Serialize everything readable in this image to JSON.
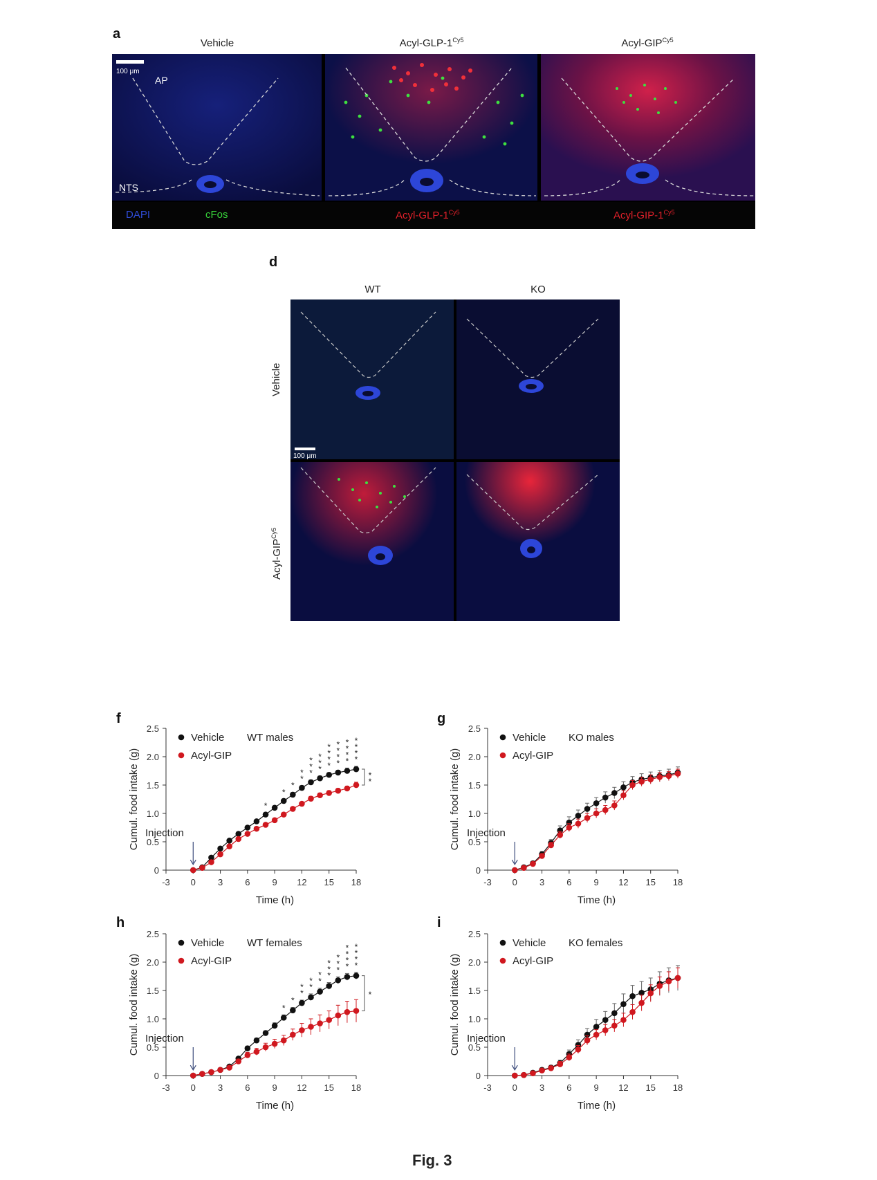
{
  "panel_a": {
    "label": "a",
    "titles": [
      {
        "main": "Vehicle",
        "sup": ""
      },
      {
        "main": "Acyl-GLP-1",
        "sup": "Cy5"
      },
      {
        "main": "Acyl-GIP",
        "sup": "Cy5"
      }
    ],
    "scale_bar": "100 μm",
    "region_ap": "AP",
    "region_nts": "NTS",
    "legend": {
      "dapi": "DAPI",
      "cfos": "cFos",
      "glp1": {
        "main": "Acyl-GLP-1",
        "sup": "Cy5"
      },
      "gip": {
        "main": "Acyl-GIP-1",
        "sup": "Cy5"
      }
    },
    "colors": {
      "dapi": "#2f4bd6",
      "cfos": "#37d33a",
      "cy5": "#e0202a"
    }
  },
  "panel_d": {
    "label": "d",
    "columns": [
      "WT",
      "KO"
    ],
    "rows": [
      {
        "main": "Vehicle",
        "sup": ""
      },
      {
        "main": "Acyl-GIP",
        "sup": "Cy5"
      }
    ],
    "scale_bar": "100 μm"
  },
  "chart_data": [
    {
      "panel": "f",
      "type": "line",
      "annotation": "WT males",
      "xlabel": "Time (h)",
      "ylabel": "Cumul. food intake (g)",
      "xlim": [
        -3,
        18
      ],
      "ylim": [
        0,
        2.5
      ],
      "xticks": [
        -3,
        0,
        3,
        6,
        9,
        12,
        15,
        18
      ],
      "yticks": [
        "0",
        "0.5",
        "1.0",
        "1.5",
        "2.0",
        "2.5"
      ],
      "injection_label": "Injection",
      "x": [
        0,
        1,
        2,
        3,
        4,
        5,
        6,
        7,
        8,
        9,
        10,
        11,
        12,
        13,
        14,
        15,
        16,
        17,
        18
      ],
      "series": [
        {
          "name": "Vehicle",
          "color": "#111111",
          "values": [
            0,
            0.05,
            0.22,
            0.38,
            0.52,
            0.64,
            0.75,
            0.86,
            0.98,
            1.1,
            1.22,
            1.33,
            1.45,
            1.55,
            1.62,
            1.68,
            1.72,
            1.75,
            1.78
          ],
          "errors": [
            0,
            0.02,
            0.03,
            0.03,
            0.03,
            0.03,
            0.03,
            0.03,
            0.03,
            0.03,
            0.03,
            0.04,
            0.04,
            0.04,
            0.04,
            0.04,
            0.04,
            0.05,
            0.05
          ]
        },
        {
          "name": "Acyl-GIP",
          "color": "#d0181f",
          "values": [
            0,
            0.04,
            0.14,
            0.28,
            0.42,
            0.55,
            0.64,
            0.73,
            0.8,
            0.88,
            0.98,
            1.08,
            1.17,
            1.26,
            1.32,
            1.36,
            1.4,
            1.44,
            1.5
          ],
          "errors": [
            0,
            0.02,
            0.03,
            0.03,
            0.03,
            0.03,
            0.03,
            0.03,
            0.03,
            0.03,
            0.03,
            0.03,
            0.03,
            0.04,
            0.04,
            0.04,
            0.04,
            0.04,
            0.05
          ]
        }
      ],
      "sig_marks": [
        {
          "x": 8,
          "stars": "*"
        },
        {
          "x": 10,
          "stars": "*"
        },
        {
          "x": 11,
          "stars": "*"
        },
        {
          "x": 12,
          "stars": "**"
        },
        {
          "x": 13,
          "stars": "***"
        },
        {
          "x": 14,
          "stars": "***"
        },
        {
          "x": 15,
          "stars": "****"
        },
        {
          "x": 16,
          "stars": "****"
        },
        {
          "x": 17,
          "stars": "****"
        },
        {
          "x": 18,
          "stars": "****"
        }
      ],
      "bracket": "**"
    },
    {
      "panel": "g",
      "type": "line",
      "annotation": "KO males",
      "xlabel": "Time (h)",
      "ylabel": "Cumul. food intake (g)",
      "xlim": [
        -3,
        18
      ],
      "ylim": [
        0,
        2.5
      ],
      "xticks": [
        -3,
        0,
        3,
        6,
        9,
        12,
        15,
        18
      ],
      "yticks": [
        "0",
        "0.5",
        "1.0",
        "1.5",
        "2.0",
        "2.5"
      ],
      "injection_label": "Injection",
      "x": [
        0,
        1,
        2,
        3,
        4,
        5,
        6,
        7,
        8,
        9,
        10,
        11,
        12,
        13,
        14,
        15,
        16,
        17,
        18
      ],
      "series": [
        {
          "name": "Vehicle",
          "color": "#111111",
          "values": [
            0,
            0.05,
            0.12,
            0.28,
            0.48,
            0.7,
            0.84,
            0.96,
            1.08,
            1.18,
            1.28,
            1.36,
            1.46,
            1.55,
            1.6,
            1.63,
            1.66,
            1.68,
            1.72
          ],
          "errors": [
            0,
            0.02,
            0.03,
            0.05,
            0.06,
            0.08,
            0.1,
            0.1,
            0.1,
            0.1,
            0.1,
            0.1,
            0.1,
            0.1,
            0.1,
            0.1,
            0.1,
            0.1,
            0.1
          ]
        },
        {
          "name": "Acyl-GIP",
          "color": "#d0181f",
          "values": [
            0,
            0.04,
            0.11,
            0.25,
            0.44,
            0.62,
            0.75,
            0.82,
            0.92,
            1.0,
            1.06,
            1.14,
            1.32,
            1.5,
            1.56,
            1.6,
            1.64,
            1.66,
            1.7
          ],
          "errors": [
            0,
            0.02,
            0.03,
            0.04,
            0.05,
            0.06,
            0.07,
            0.08,
            0.08,
            0.08,
            0.08,
            0.08,
            0.08,
            0.08,
            0.08,
            0.08,
            0.08,
            0.08,
            0.08
          ]
        }
      ]
    },
    {
      "panel": "h",
      "type": "line",
      "annotation": "WT females",
      "xlabel": "Time (h)",
      "ylabel": "Cumul. food intake (g)",
      "xlim": [
        -3,
        18
      ],
      "ylim": [
        0,
        2.5
      ],
      "xticks": [
        -3,
        0,
        3,
        6,
        9,
        12,
        15,
        18
      ],
      "yticks": [
        "0",
        "0.5",
        "1.0",
        "1.5",
        "2.0",
        "2.5"
      ],
      "injection_label": "Injection",
      "x": [
        0,
        1,
        2,
        3,
        4,
        5,
        6,
        7,
        8,
        9,
        10,
        11,
        12,
        13,
        14,
        15,
        16,
        17,
        18
      ],
      "series": [
        {
          "name": "Vehicle",
          "color": "#111111",
          "values": [
            0,
            0.03,
            0.06,
            0.1,
            0.16,
            0.3,
            0.48,
            0.62,
            0.75,
            0.88,
            1.02,
            1.15,
            1.28,
            1.38,
            1.48,
            1.58,
            1.68,
            1.74,
            1.76
          ],
          "errors": [
            0,
            0.01,
            0.02,
            0.02,
            0.03,
            0.03,
            0.04,
            0.04,
            0.04,
            0.05,
            0.05,
            0.05,
            0.05,
            0.06,
            0.06,
            0.06,
            0.06,
            0.06,
            0.06
          ]
        },
        {
          "name": "Acyl-GIP",
          "color": "#d0181f",
          "values": [
            0,
            0.03,
            0.06,
            0.1,
            0.14,
            0.25,
            0.36,
            0.42,
            0.5,
            0.56,
            0.62,
            0.72,
            0.8,
            0.86,
            0.92,
            0.98,
            1.06,
            1.12,
            1.14
          ],
          "errors": [
            0,
            0.01,
            0.02,
            0.02,
            0.03,
            0.04,
            0.05,
            0.06,
            0.07,
            0.08,
            0.09,
            0.1,
            0.12,
            0.14,
            0.15,
            0.16,
            0.18,
            0.19,
            0.2
          ]
        }
      ],
      "sig_marks": [
        {
          "x": 10,
          "stars": "*"
        },
        {
          "x": 11,
          "stars": "*"
        },
        {
          "x": 12,
          "stars": "**"
        },
        {
          "x": 13,
          "stars": "**"
        },
        {
          "x": 14,
          "stars": "**"
        },
        {
          "x": 15,
          "stars": "***"
        },
        {
          "x": 16,
          "stars": "***"
        },
        {
          "x": 17,
          "stars": "****"
        },
        {
          "x": 18,
          "stars": "****"
        }
      ],
      "bracket": "*"
    },
    {
      "panel": "i",
      "type": "line",
      "annotation": "KO females",
      "xlabel": "Time (h)",
      "ylabel": "Cumul. food intake (g)",
      "xlim": [
        -3,
        18
      ],
      "ylim": [
        0,
        2.5
      ],
      "xticks": [
        -3,
        0,
        3,
        6,
        9,
        12,
        15,
        18
      ],
      "yticks": [
        "0",
        "0.5",
        "1.0",
        "1.5",
        "2.0",
        "2.5"
      ],
      "injection_label": "Injection",
      "x": [
        0,
        1,
        2,
        3,
        4,
        5,
        6,
        7,
        8,
        9,
        10,
        11,
        12,
        13,
        14,
        15,
        16,
        17,
        18
      ],
      "series": [
        {
          "name": "Vehicle",
          "color": "#111111",
          "values": [
            0,
            0.01,
            0.05,
            0.1,
            0.14,
            0.22,
            0.38,
            0.54,
            0.72,
            0.86,
            0.98,
            1.1,
            1.26,
            1.4,
            1.46,
            1.52,
            1.62,
            1.68,
            1.72
          ],
          "errors": [
            0,
            0.01,
            0.02,
            0.03,
            0.04,
            0.05,
            0.07,
            0.09,
            0.11,
            0.13,
            0.15,
            0.17,
            0.18,
            0.19,
            0.2,
            0.2,
            0.21,
            0.22,
            0.22
          ]
        },
        {
          "name": "Acyl-GIP",
          "color": "#d0181f",
          "values": [
            0,
            0.01,
            0.04,
            0.09,
            0.13,
            0.2,
            0.32,
            0.46,
            0.62,
            0.72,
            0.8,
            0.88,
            0.98,
            1.12,
            1.28,
            1.45,
            1.58,
            1.66,
            1.72
          ],
          "errors": [
            0,
            0.01,
            0.02,
            0.03,
            0.04,
            0.05,
            0.06,
            0.07,
            0.08,
            0.09,
            0.1,
            0.11,
            0.12,
            0.13,
            0.14,
            0.15,
            0.16,
            0.17,
            0.18
          ]
        }
      ]
    }
  ],
  "figure_caption": "Fig. 3"
}
